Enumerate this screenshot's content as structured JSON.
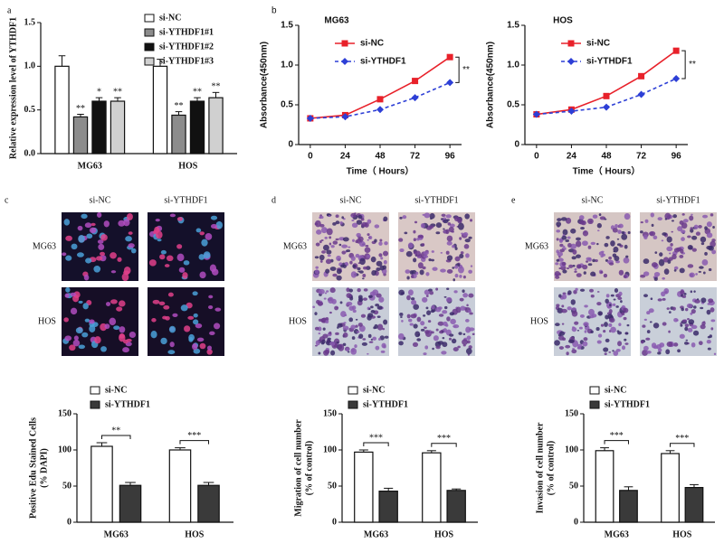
{
  "chart_data": [
    {
      "type": "bar",
      "panel": "a",
      "ylabel": "Relative expression level of YTHDF1",
      "categories": [
        "MG63",
        "HOS"
      ],
      "ylim": [
        0,
        1.5
      ],
      "yticks": [
        {
          "value": 0,
          "label": "0.0"
        },
        0.5,
        {
          "value": 1,
          "label": "1.0"
        },
        1.5
      ],
      "series": [
        {
          "name": "si-NC",
          "color": "#ffffff",
          "values": [
            1.0,
            1.0
          ],
          "errors": [
            0.12,
            0.08
          ]
        },
        {
          "name": "si-YTHDF1#1",
          "color": "#8c8c8c",
          "values": [
            0.42,
            0.44
          ],
          "errors": [
            0.03,
            0.04
          ],
          "significance": [
            "**",
            "**"
          ]
        },
        {
          "name": "si-YTHDF1#2",
          "color": "#111111",
          "values": [
            0.6,
            0.6
          ],
          "errors": [
            0.04,
            0.04
          ],
          "significance": [
            "*",
            "**"
          ]
        },
        {
          "name": "si-YTHDF1#3",
          "color": "#d0d0d0",
          "values": [
            0.6,
            0.64
          ],
          "errors": [
            0.04,
            0.06
          ],
          "significance": [
            "**",
            "**"
          ]
        }
      ]
    },
    {
      "type": "line",
      "panel": "b",
      "title": "MG63",
      "xlabel": "Time（ Hours）",
      "ylabel": "Absorbance(450nm)",
      "x": [
        0,
        24,
        48,
        72,
        96
      ],
      "xlim": [
        -8,
        104
      ],
      "xticks": [
        0,
        24,
        48,
        72,
        96
      ],
      "ylim": [
        0,
        1.5
      ],
      "yticks": [
        0,
        0.5,
        {
          "value": 1,
          "label": "1.0"
        },
        1.5
      ],
      "significance": "**",
      "series": [
        {
          "name": "si-NC",
          "color": "#e8212a",
          "line_style": "solid",
          "marker": "square",
          "values": [
            0.33,
            0.37,
            0.57,
            0.8,
            1.1
          ]
        },
        {
          "name": "si-YTHDF1",
          "color": "#2d3fd6",
          "line_style": "dashed",
          "marker": "diamond",
          "values": [
            0.33,
            0.35,
            0.44,
            0.59,
            0.78
          ]
        }
      ]
    },
    {
      "type": "line",
      "title": "HOS",
      "xlabel": "Time（ Hours）",
      "ylabel": "Absorbance(450nm)",
      "x": [
        0,
        24,
        48,
        72,
        96
      ],
      "xlim": [
        -8,
        104
      ],
      "xticks": [
        0,
        24,
        48,
        72,
        96
      ],
      "ylim": [
        0,
        1.5
      ],
      "yticks": [
        0,
        0.5,
        {
          "value": 1,
          "label": "1.0"
        },
        1.5
      ],
      "significance": "**",
      "series": [
        {
          "name": "si-NC",
          "color": "#e8212a",
          "line_style": "solid",
          "marker": "square",
          "values": [
            0.38,
            0.44,
            0.61,
            0.86,
            1.18
          ]
        },
        {
          "name": "si-YTHDF1",
          "color": "#2d3fd6",
          "line_style": "dashed",
          "marker": "diamond",
          "values": [
            0.38,
            0.42,
            0.47,
            0.63,
            0.83
          ]
        }
      ]
    },
    {
      "type": "bar",
      "ylabel": [
        "Positive Edu Stained Cells",
        "(% DAPI)"
      ],
      "categories": [
        "MG63",
        "HOS"
      ],
      "ylim": [
        0,
        150
      ],
      "yticks": [
        0,
        50,
        100,
        150
      ],
      "significance": [
        "**",
        "***"
      ],
      "series": [
        {
          "name": "si-NC",
          "color": "#ffffff",
          "values": [
            105,
            100
          ],
          "errors": [
            5,
            3
          ]
        },
        {
          "name": "si-YTHDF1",
          "color": "#3a3a3a",
          "values": [
            51,
            51
          ],
          "errors": [
            4,
            4
          ]
        }
      ]
    },
    {
      "type": "bar",
      "ylabel": [
        "Migration of cell number",
        "(% of control)"
      ],
      "categories": [
        "MG63",
        "HOS"
      ],
      "ylim": [
        0,
        150
      ],
      "yticks": [
        0,
        50,
        100,
        150
      ],
      "significance": [
        "***",
        "***"
      ],
      "series": [
        {
          "name": "si-NC",
          "color": "#ffffff",
          "values": [
            97,
            96
          ],
          "errors": [
            3,
            3
          ]
        },
        {
          "name": "si-YTHDF1",
          "color": "#3a3a3a",
          "values": [
            43,
            44
          ],
          "errors": [
            4,
            2
          ]
        }
      ]
    },
    {
      "type": "bar",
      "ylabel": [
        "Invasion of cell number",
        "(% of control)"
      ],
      "categories": [
        "MG63",
        "HOS"
      ],
      "ylim": [
        0,
        150
      ],
      "yticks": [
        0,
        50,
        100,
        150
      ],
      "significance": [
        "***",
        "***"
      ],
      "series": [
        {
          "name": "si-NC",
          "color": "#ffffff",
          "values": [
            99,
            95
          ],
          "errors": [
            4,
            4
          ]
        },
        {
          "name": "si-YTHDF1",
          "color": "#3a3a3a",
          "values": [
            44,
            48
          ],
          "errors": [
            5,
            4
          ]
        }
      ]
    }
  ],
  "images": [
    {
      "panel": "c",
      "columns": [
        "si-NC",
        "si-YTHDF1"
      ],
      "rows": [
        "MG63",
        "HOS"
      ]
    },
    {
      "panel": "d",
      "columns": [
        "si-NC",
        "si-YTHDF1"
      ],
      "rows": [
        "MG63",
        "HOS"
      ]
    },
    {
      "panel": "e",
      "columns": [
        "si-NC",
        "si-YTHDF1"
      ],
      "rows": [
        "MG63",
        "HOS"
      ]
    }
  ]
}
